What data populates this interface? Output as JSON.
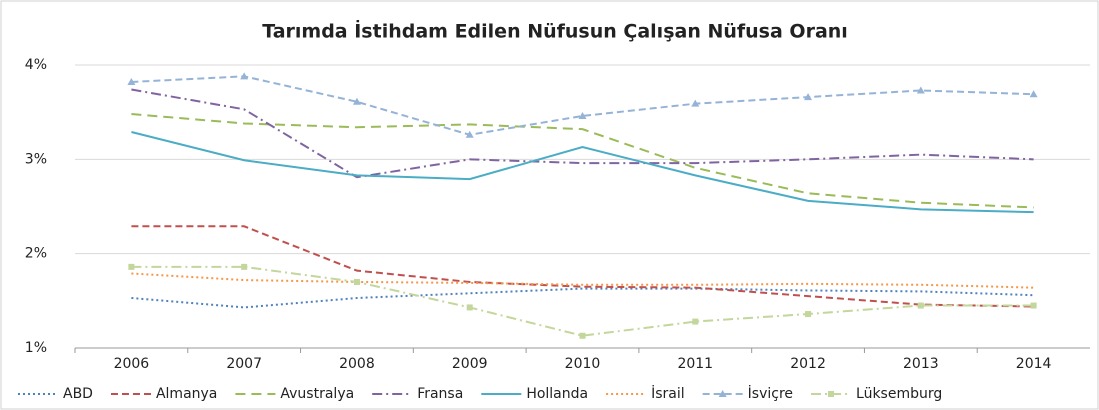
{
  "chart_data": {
    "type": "line",
    "title": "Tarımda İstihdam Edilen Nüfusun Çalışan Nüfusa Oranı",
    "categories": [
      "2006",
      "2007",
      "2008",
      "2009",
      "2010",
      "2011",
      "2012",
      "2013",
      "2014"
    ],
    "ylim": [
      1,
      4
    ],
    "yticks": [
      {
        "value": 1,
        "label": "1%"
      },
      {
        "value": 2,
        "label": "2%"
      },
      {
        "value": 3,
        "label": "3%"
      },
      {
        "value": 4,
        "label": "4%"
      }
    ],
    "grid": true,
    "legend": "bottom",
    "series": [
      {
        "name": "ABD",
        "color": "#4f81bd",
        "dash": "dotted",
        "values": [
          1.53,
          1.43,
          1.53,
          1.58,
          1.63,
          1.63,
          1.61,
          1.6,
          1.56
        ]
      },
      {
        "name": "Almanya",
        "color": "#c0504d",
        "dash": "dashed",
        "values": [
          2.29,
          2.29,
          1.82,
          1.7,
          1.65,
          1.64,
          1.55,
          1.46,
          1.44
        ]
      },
      {
        "name": "Avustralya",
        "color": "#9bbb59",
        "dash": "long-dashed",
        "values": [
          3.48,
          3.38,
          3.34,
          3.37,
          3.32,
          2.91,
          2.64,
          2.54,
          2.49
        ]
      },
      {
        "name": "Fransa",
        "color": "#8064a2",
        "dash": "dash-dot",
        "values": [
          3.74,
          3.53,
          2.81,
          3.0,
          2.96,
          2.96,
          3.0,
          3.05,
          3.0
        ]
      },
      {
        "name": "Hollanda",
        "color": "#4bacc6",
        "dash": "solid",
        "values": [
          3.29,
          2.99,
          2.83,
          2.79,
          3.13,
          2.83,
          2.56,
          2.47,
          2.44
        ]
      },
      {
        "name": "İsrail",
        "color": "#f79646",
        "dash": "dotted",
        "values": [
          1.79,
          1.72,
          1.7,
          1.69,
          1.67,
          1.67,
          1.68,
          1.67,
          1.64
        ]
      },
      {
        "name": "İsviçre",
        "color": "#95b3d7",
        "dash": "dashed",
        "marker": "triangle",
        "values": [
          3.82,
          3.88,
          3.61,
          3.26,
          3.46,
          3.59,
          3.66,
          3.73,
          3.69
        ]
      },
      {
        "name": "Lüksemburg",
        "color": "#c3d69b",
        "dash": "dash-dot",
        "marker": "square",
        "values": [
          1.86,
          1.86,
          1.7,
          1.43,
          1.13,
          1.28,
          1.36,
          1.45,
          1.45
        ]
      }
    ]
  }
}
